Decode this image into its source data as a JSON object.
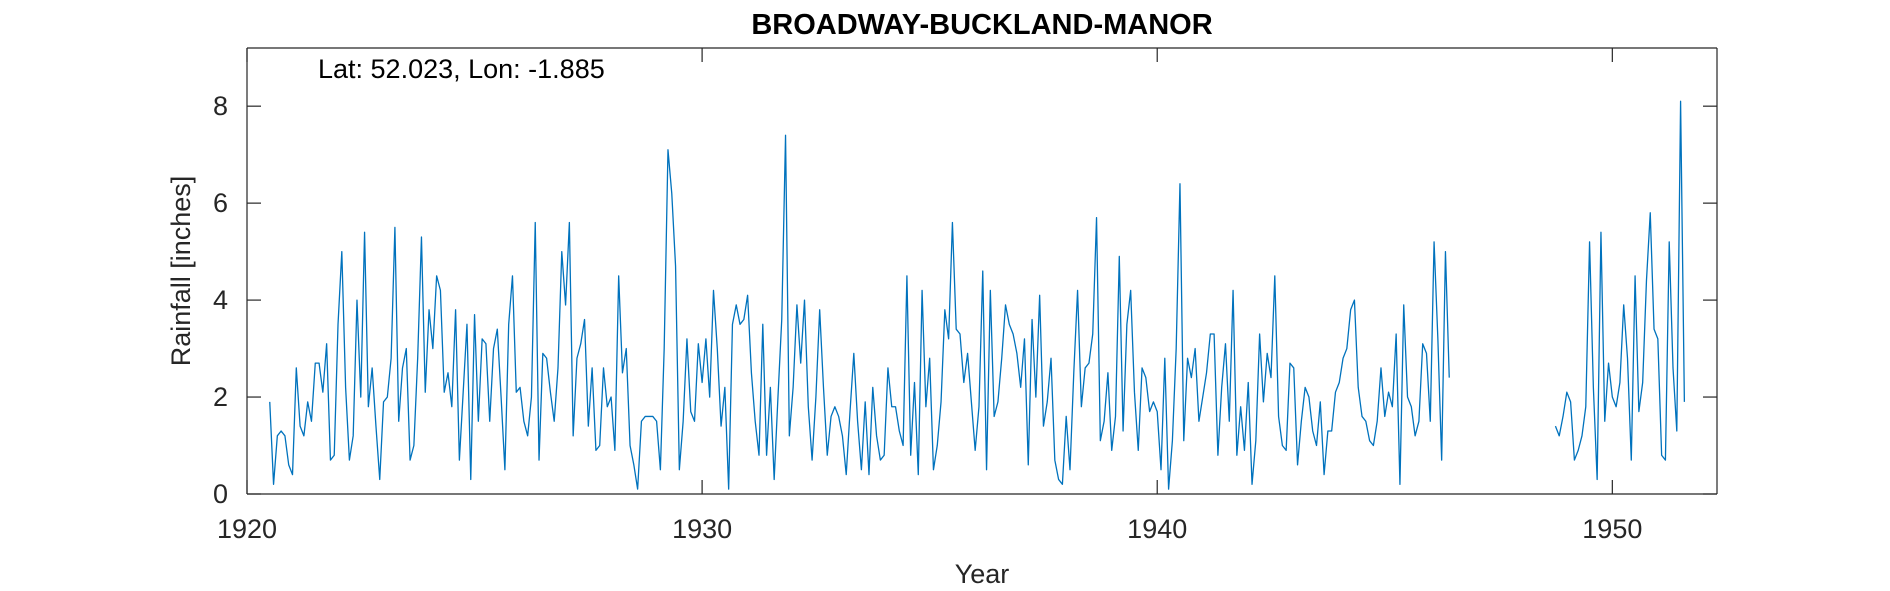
{
  "chart_data": {
    "type": "line",
    "title": "BROADWAY-BUCKLAND-MANOR",
    "annotation": "Lat: 52.023, Lon: -1.885",
    "xlabel": "Year",
    "ylabel": "Rainfall [inches]",
    "xlim": [
      1920,
      1952.3
    ],
    "ylim": [
      0,
      9.2
    ],
    "xticks": [
      1920,
      1930,
      1940,
      1950
    ],
    "yticks": [
      0,
      2,
      4,
      6,
      8
    ],
    "grid": false,
    "line_color": "#0072BD",
    "series": [
      {
        "segments": [
          {
            "start_year": 1920.5,
            "step": 0.0833333,
            "values": [
              1.9,
              0.2,
              1.2,
              1.3,
              1.2,
              0.6,
              0.4,
              2.6,
              1.4,
              1.2,
              1.9,
              1.5,
              2.7,
              2.7,
              2.1,
              3.1,
              0.7,
              0.8,
              3.5,
              5.0,
              2.2,
              0.7,
              1.2,
              4.0,
              2.0,
              5.4,
              1.8,
              2.6,
              1.4,
              0.3,
              1.9,
              2.0,
              2.8,
              5.5,
              1.5,
              2.6,
              3.0,
              0.7,
              1.0,
              2.8,
              5.3,
              2.1,
              3.8,
              3.0,
              4.5,
              4.2,
              2.1,
              2.5,
              1.8,
              3.8,
              0.7,
              2.1,
              3.5,
              0.3,
              3.7,
              1.5,
              3.2,
              3.1,
              1.5,
              3.0,
              3.4,
              2.0,
              0.5,
              3.5,
              4.5,
              2.1,
              2.2,
              1.5,
              1.2,
              2.0,
              5.6,
              0.7,
              2.9,
              2.8,
              2.1,
              1.5,
              2.6,
              5.0,
              3.9,
              5.6,
              1.2,
              2.8,
              3.1,
              3.6,
              1.4,
              2.6,
              0.9,
              1.0,
              2.6,
              1.8,
              2.0,
              0.9,
              4.5,
              2.5,
              3.0,
              1.0,
              0.6,
              0.1,
              1.5,
              1.6,
              1.6,
              1.6,
              1.5,
              0.5,
              3.0,
              7.1,
              6.2,
              4.7,
              0.5,
              1.5,
              3.2,
              1.7,
              1.5,
              3.1,
              2.3,
              3.2,
              2.0,
              4.2,
              3.0,
              1.4,
              2.2,
              0.1,
              3.5,
              3.9,
              3.5,
              3.6,
              4.1,
              2.5,
              1.5,
              0.8,
              3.5,
              0.8,
              2.2,
              0.3,
              2.0,
              3.6,
              7.4,
              1.2,
              2.2,
              3.9,
              2.7,
              4.0,
              1.8,
              0.7,
              2.0,
              3.8,
              2.2,
              0.8,
              1.6,
              1.8,
              1.6,
              1.2,
              0.4,
              1.7,
              2.9,
              1.5,
              0.5,
              1.9,
              0.4,
              2.2,
              1.2,
              0.7,
              0.8,
              2.6,
              1.8,
              1.8,
              1.3,
              1.0,
              4.5,
              0.8,
              2.3,
              0.4,
              4.2,
              1.8,
              2.8,
              0.5,
              1.0,
              1.9,
              3.8,
              3.2,
              5.6,
              3.4,
              3.3,
              2.3,
              2.9,
              1.9,
              0.9,
              1.8,
              4.6,
              0.5,
              4.2,
              1.6,
              1.9,
              2.8,
              3.9,
              3.5,
              3.3,
              2.9,
              2.2,
              3.2,
              0.6,
              3.6,
              2.0,
              4.1,
              1.4,
              1.9,
              2.8,
              0.7,
              0.3,
              0.2,
              1.6,
              0.5,
              2.5,
              4.2,
              1.8,
              2.6,
              2.7,
              3.3,
              5.7,
              1.1,
              1.5,
              2.5,
              0.9,
              1.6,
              4.9,
              1.3,
              3.5,
              4.2,
              2.1,
              0.9,
              2.6,
              2.4,
              1.7,
              1.9,
              1.7,
              0.5,
              2.8,
              0.1,
              1.1,
              3.0,
              6.4,
              1.1,
              2.8,
              2.4,
              3.0,
              1.5,
              2.0,
              2.5,
              3.3,
              3.3,
              0.8,
              2.2,
              3.1,
              1.5,
              4.2,
              0.8,
              1.8,
              0.9,
              2.3,
              0.2,
              1.1,
              3.3,
              1.9,
              2.9,
              2.4,
              4.5,
              1.6,
              1.0,
              0.9,
              2.7,
              2.6,
              0.6,
              1.5,
              2.2,
              2.0,
              1.3,
              1.0,
              1.9,
              0.4,
              1.3,
              1.3,
              2.1,
              2.3,
              2.8,
              3.0,
              3.8,
              4.0,
              2.2,
              1.6,
              1.5,
              1.1,
              1.0,
              1.5,
              2.6,
              1.6,
              2.1,
              1.8,
              3.3,
              0.2,
              3.9,
              2.0,
              1.8,
              1.2,
              1.5,
              3.1,
              2.9,
              1.5,
              5.2,
              3.2,
              0.7,
              5.0,
              2.4
            ]
          },
          {
            "start_year": 1948.75,
            "step": 0.0833333,
            "values": [
              1.4,
              1.2,
              1.6,
              2.1,
              1.9,
              0.7,
              0.9,
              1.2,
              1.8,
              5.2,
              2.2,
              0.3,
              5.4,
              1.5,
              2.7,
              2.0,
              1.8,
              2.3,
              3.9,
              2.8,
              0.7,
              4.5,
              1.7,
              2.3,
              4.4,
              5.8,
              3.4,
              3.2,
              0.8,
              0.7,
              5.2,
              2.6,
              1.3,
              8.1,
              1.9
            ]
          }
        ]
      }
    ]
  }
}
